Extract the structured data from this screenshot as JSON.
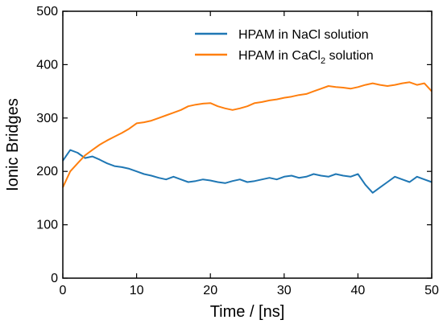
{
  "chart_data": {
    "type": "line",
    "xlabel": "Time / [ns]",
    "ylabel": "Ionic Bridges",
    "xlim": [
      0,
      50
    ],
    "ylim": [
      0,
      500
    ],
    "x_ticks": [
      0,
      10,
      20,
      30,
      40,
      50
    ],
    "y_ticks": [
      0,
      100,
      200,
      300,
      400,
      500
    ],
    "grid": false,
    "legend_position": "top-right",
    "series": [
      {
        "name": "HPAM in NaCl solution",
        "legend_parts": [
          "HPAM in NaCl solution"
        ],
        "color": "#1f77b4",
        "x": [
          0,
          1,
          2,
          3,
          4,
          5,
          6,
          7,
          8,
          9,
          10,
          11,
          12,
          13,
          14,
          15,
          16,
          17,
          18,
          19,
          20,
          21,
          22,
          23,
          24,
          25,
          26,
          27,
          28,
          29,
          30,
          31,
          32,
          33,
          34,
          35,
          36,
          37,
          38,
          39,
          40,
          41,
          42,
          43,
          44,
          45,
          46,
          47,
          48,
          49,
          50
        ],
        "values": [
          220,
          240,
          235,
          225,
          228,
          222,
          215,
          210,
          208,
          205,
          200,
          195,
          192,
          188,
          185,
          190,
          185,
          180,
          182,
          185,
          183,
          180,
          178,
          182,
          185,
          180,
          182,
          185,
          188,
          185,
          190,
          192,
          188,
          190,
          195,
          192,
          190,
          195,
          192,
          190,
          195,
          175,
          160,
          170,
          180,
          190,
          185,
          180,
          190,
          185,
          180
        ]
      },
      {
        "name": "HPAM in CaCl2 solution",
        "legend_parts": [
          "HPAM in CaCl",
          "2",
          " solution"
        ],
        "color": "#ff7f0e",
        "x": [
          0,
          1,
          2,
          3,
          4,
          5,
          6,
          7,
          8,
          9,
          10,
          11,
          12,
          13,
          14,
          15,
          16,
          17,
          18,
          19,
          20,
          21,
          22,
          23,
          24,
          25,
          26,
          27,
          28,
          29,
          30,
          31,
          32,
          33,
          34,
          35,
          36,
          37,
          38,
          39,
          40,
          41,
          42,
          43,
          44,
          45,
          46,
          47,
          48,
          49,
          50
        ],
        "values": [
          170,
          200,
          215,
          230,
          240,
          250,
          258,
          265,
          272,
          280,
          290,
          292,
          295,
          300,
          305,
          310,
          315,
          322,
          325,
          327,
          328,
          322,
          318,
          315,
          318,
          322,
          328,
          330,
          333,
          335,
          338,
          340,
          343,
          345,
          350,
          355,
          360,
          358,
          357,
          355,
          358,
          362,
          365,
          362,
          360,
          362,
          365,
          367,
          362,
          365,
          350
        ]
      }
    ]
  }
}
